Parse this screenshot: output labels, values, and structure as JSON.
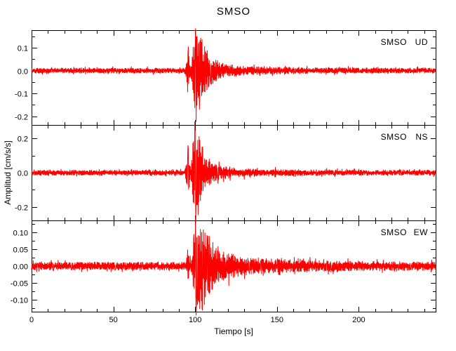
{
  "chart_data": {
    "type": "line",
    "title": "SMSO",
    "xlabel": "Tiempo [s]",
    "ylabel": "Amplitud [cm/s/s]",
    "trace_color": "#ff0000",
    "axis_color": "#000000",
    "background_color": "#ffffff",
    "legend_position": "top-right-inside-each-panel",
    "grid": false,
    "x_range": [
      0,
      247
    ],
    "x_minor_step": 10,
    "x_major_ticks": [
      {
        "v": 0,
        "label": "0"
      },
      {
        "v": 50,
        "label": "50"
      },
      {
        "v": 100,
        "label": "100"
      },
      {
        "v": 150,
        "label": "150"
      },
      {
        "v": 200,
        "label": "200"
      }
    ],
    "event": {
      "p_onset_s": 95.5,
      "peak_s": 100,
      "approx_coda_end_s": 140
    },
    "panels": [
      {
        "station": "SMSO",
        "component": "UD",
        "label": "SMSO UD",
        "ylim": [
          -0.238,
          0.177
        ],
        "yticks": [
          {
            "v": 0.1,
            "label": "0.1"
          },
          {
            "v": 0.0,
            "label": "0.0"
          },
          {
            "v": -0.1,
            "label": "-0.1"
          },
          {
            "v": -0.2,
            "label": "-0.2"
          }
        ],
        "y_minor_step": 0.05,
        "noise_amp": 0.012,
        "precursor_amp": 0.09,
        "peak_amp": 0.17,
        "attack_start": 96.5,
        "attack_end": 99,
        "hold_end": 102,
        "decay_tau": 5.5,
        "coda_factor": 1.8,
        "coda_tau": 30,
        "spikes": [
          {
            "t": 95.7,
            "v": 0.105
          },
          {
            "t": 100.2,
            "v": 0.185
          },
          {
            "t": 100.6,
            "v": -0.225
          }
        ]
      },
      {
        "station": "SMSO",
        "component": "NS",
        "label": "SMSO NS",
        "ylim": [
          -0.28,
          0.28
        ],
        "yticks": [
          {
            "v": 0.2,
            "label": "0.2"
          },
          {
            "v": 0.0,
            "label": "0.0"
          },
          {
            "v": -0.2,
            "label": "-0.2"
          }
        ],
        "y_minor_step": 0.1,
        "noise_amp": 0.016,
        "precursor_amp": 0.13,
        "peak_amp": 0.26,
        "attack_start": 96.5,
        "attack_end": 99,
        "hold_end": 101.5,
        "decay_tau": 4.5,
        "coda_factor": 1.8,
        "coda_tau": 30,
        "spikes": [
          {
            "t": 95.6,
            "v": 0.16
          },
          {
            "t": 99.8,
            "v": 0.3
          },
          {
            "t": 100.4,
            "v": -0.295
          }
        ]
      },
      {
        "station": "SMSO",
        "component": "EW",
        "label": "SMSO EW",
        "ylim": [
          -0.135,
          0.135
        ],
        "yticks": [
          {
            "v": 0.1,
            "label": "0.10"
          },
          {
            "v": 0.05,
            "label": "0.05"
          },
          {
            "v": 0.0,
            "label": "0.00"
          },
          {
            "v": -0.05,
            "label": "-0.05"
          },
          {
            "v": -0.1,
            "label": "-0.10"
          }
        ],
        "y_minor_step": 0.025,
        "noise_amp": 0.012,
        "precursor_amp": 0.05,
        "peak_amp": 0.125,
        "attack_start": 96.5,
        "attack_end": 99.5,
        "hold_end": 103.5,
        "decay_tau": 7,
        "coda_factor": 2.2,
        "coda_tau": 45,
        "spikes": [
          {
            "t": 100.2,
            "v": 0.142
          },
          {
            "t": 100.6,
            "v": -0.146
          },
          {
            "t": 101.4,
            "v": -0.115
          }
        ]
      }
    ]
  }
}
